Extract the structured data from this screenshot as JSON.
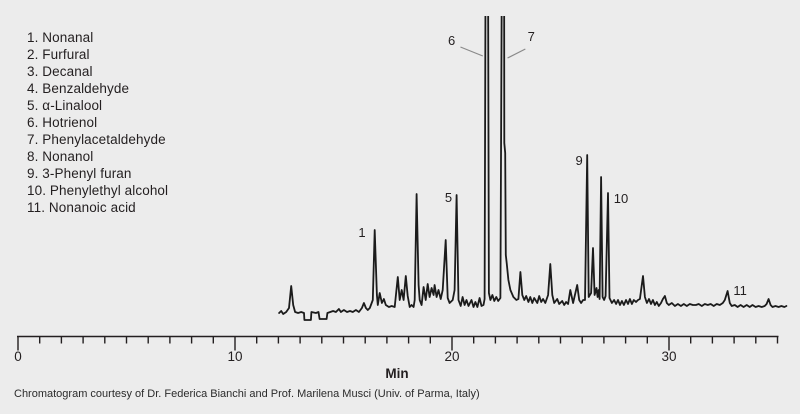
{
  "colors": {
    "background": "#ECECEC",
    "trace": "#1B1B1B",
    "text": "#231F20",
    "leader_line": "#8A8A8A"
  },
  "legend": {
    "items": [
      "1. Nonanal",
      "2. Furfural",
      "3. Decanal",
      "4. Benzaldehyde",
      "5. α-Linalool",
      "6. Hotrienol",
      "7. Phenylacetaldehyde",
      "8. Nonanol",
      "9. 3-Phenyl furan",
      "10. Phenylethyl alcohol",
      "11. Nonanoic acid"
    ]
  },
  "caption": {
    "text": "Chromatogram courtesy of Dr. Federica Bianchi and Prof. Marilena Musci (Univ. of Parma, Italy)"
  },
  "chart_data": {
    "type": "line",
    "title": "",
    "xlabel": "Min",
    "ylabel": "",
    "x_range": [
      0,
      35
    ],
    "minor_tick_step": 1,
    "major_ticks": [
      0,
      10,
      20,
      30
    ],
    "grid": false,
    "peaks": [
      {
        "label": "1",
        "compound": "Nonanal",
        "retention_min": 16.4,
        "off_scale": false
      },
      {
        "label": "5",
        "compound": "α-Linalool",
        "retention_min": 20.2,
        "off_scale": false
      },
      {
        "label": "6",
        "compound": "Hotrienol",
        "retention_min": 21.6,
        "off_scale": true
      },
      {
        "label": "7",
        "compound": "Phenylacetaldehyde",
        "retention_min": 22.3,
        "off_scale": true
      },
      {
        "label": "9",
        "compound": "3-Phenyl furan",
        "retention_min": 26.2,
        "off_scale": false
      },
      {
        "label": "10",
        "compound": "Phenylethyl alcohol",
        "retention_min": 27.2,
        "off_scale": false
      },
      {
        "label": "11",
        "compound": "Nonanoic acid",
        "retention_min": 32.7,
        "off_scale": false
      }
    ],
    "peak_labels": [
      {
        "text": "1",
        "t": 15.85,
        "v": 76
      },
      {
        "text": "5",
        "t": 19.84,
        "v": 111
      },
      {
        "text": "6",
        "t": 19.98,
        "v": 268
      },
      {
        "text": "7",
        "t": 23.65,
        "v": 272
      },
      {
        "text": "9",
        "t": 25.86,
        "v": 148
      },
      {
        "text": "10",
        "t": 27.79,
        "v": 110
      },
      {
        "text": "11",
        "t": 33.28,
        "v": 18
      }
    ],
    "leader_lines": [
      {
        "t1": 20.39,
        "v1": 266,
        "t2": 21.42,
        "v2": 257
      },
      {
        "t1": 23.38,
        "v1": 264,
        "t2": 22.56,
        "v2": 255
      }
    ],
    "trace_points": [
      [
        12.03,
        0
      ],
      [
        12.13,
        2
      ],
      [
        12.22,
        -1
      ],
      [
        12.36,
        1
      ],
      [
        12.49,
        5
      ],
      [
        12.59,
        27
      ],
      [
        12.68,
        8
      ],
      [
        12.77,
        1
      ],
      [
        12.91,
        0
      ],
      [
        13.05,
        1
      ],
      [
        13.18,
        0
      ],
      [
        13.2,
        -7
      ],
      [
        13.5,
        -7
      ],
      [
        13.52,
        1
      ],
      [
        13.73,
        0
      ],
      [
        13.85,
        1
      ],
      [
        13.9,
        -6
      ],
      [
        14.22,
        -6
      ],
      [
        14.26,
        0
      ],
      [
        14.52,
        2
      ],
      [
        14.65,
        1
      ],
      [
        14.79,
        4
      ],
      [
        14.88,
        1
      ],
      [
        15.02,
        3
      ],
      [
        15.16,
        1
      ],
      [
        15.3,
        2
      ],
      [
        15.43,
        1
      ],
      [
        15.57,
        3
      ],
      [
        15.71,
        1
      ],
      [
        15.85,
        5
      ],
      [
        15.94,
        10
      ],
      [
        16.03,
        5
      ],
      [
        16.12,
        3
      ],
      [
        16.21,
        5
      ],
      [
        16.35,
        13
      ],
      [
        16.44,
        83
      ],
      [
        16.54,
        18
      ],
      [
        16.58,
        8
      ],
      [
        16.67,
        20
      ],
      [
        16.77,
        10
      ],
      [
        16.86,
        14
      ],
      [
        16.95,
        8
      ],
      [
        17.09,
        6
      ],
      [
        17.22,
        7
      ],
      [
        17.36,
        6
      ],
      [
        17.5,
        36
      ],
      [
        17.59,
        13
      ],
      [
        17.68,
        23
      ],
      [
        17.77,
        13
      ],
      [
        17.87,
        37
      ],
      [
        17.96,
        17
      ],
      [
        18.05,
        6
      ],
      [
        18.14,
        8
      ],
      [
        18.23,
        6
      ],
      [
        18.28,
        13
      ],
      [
        18.37,
        119
      ],
      [
        18.46,
        28
      ],
      [
        18.51,
        13
      ],
      [
        18.6,
        8
      ],
      [
        18.69,
        26
      ],
      [
        18.79,
        13
      ],
      [
        18.88,
        29
      ],
      [
        18.97,
        16
      ],
      [
        19.06,
        25
      ],
      [
        19.15,
        18
      ],
      [
        19.2,
        28
      ],
      [
        19.29,
        16
      ],
      [
        19.38,
        23
      ],
      [
        19.48,
        14
      ],
      [
        19.57,
        23
      ],
      [
        19.71,
        73
      ],
      [
        19.8,
        15
      ],
      [
        19.89,
        10
      ],
      [
        20.03,
        13
      ],
      [
        20.12,
        23
      ],
      [
        20.21,
        118
      ],
      [
        20.3,
        13
      ],
      [
        20.4,
        7
      ],
      [
        20.49,
        16
      ],
      [
        20.58,
        8
      ],
      [
        20.67,
        13
      ],
      [
        20.76,
        7
      ],
      [
        20.9,
        13
      ],
      [
        20.99,
        6
      ],
      [
        21.08,
        11
      ],
      [
        21.17,
        6
      ],
      [
        21.27,
        15
      ],
      [
        21.36,
        7
      ],
      [
        21.45,
        8
      ],
      [
        21.5,
        14
      ],
      [
        21.55,
        360
      ],
      [
        21.66,
        360
      ],
      [
        21.7,
        20
      ],
      [
        21.77,
        13
      ],
      [
        21.86,
        18
      ],
      [
        21.95,
        12
      ],
      [
        22.04,
        16
      ],
      [
        22.13,
        12
      ],
      [
        22.23,
        15
      ],
      [
        22.3,
        360
      ],
      [
        22.4,
        360
      ],
      [
        22.41,
        170
      ],
      [
        22.45,
        160
      ],
      [
        22.48,
        58
      ],
      [
        22.52,
        50
      ],
      [
        22.6,
        33
      ],
      [
        22.69,
        23
      ],
      [
        22.83,
        16
      ],
      [
        22.97,
        13
      ],
      [
        23.06,
        14
      ],
      [
        23.15,
        41
      ],
      [
        23.24,
        18
      ],
      [
        23.33,
        13
      ],
      [
        23.42,
        17
      ],
      [
        23.52,
        11
      ],
      [
        23.61,
        16
      ],
      [
        23.7,
        10
      ],
      [
        23.79,
        15
      ],
      [
        23.93,
        10
      ],
      [
        24.02,
        17
      ],
      [
        24.11,
        11
      ],
      [
        24.2,
        14
      ],
      [
        24.3,
        10
      ],
      [
        24.43,
        18
      ],
      [
        24.53,
        49
      ],
      [
        24.62,
        18
      ],
      [
        24.71,
        10
      ],
      [
        24.85,
        14
      ],
      [
        24.94,
        9
      ],
      [
        25.08,
        12
      ],
      [
        25.17,
        8
      ],
      [
        25.26,
        11
      ],
      [
        25.35,
        9
      ],
      [
        25.45,
        23
      ],
      [
        25.58,
        10
      ],
      [
        25.77,
        28
      ],
      [
        25.86,
        13
      ],
      [
        25.95,
        10
      ],
      [
        26.04,
        13
      ],
      [
        26.13,
        13
      ],
      [
        26.23,
        158
      ],
      [
        26.3,
        16
      ],
      [
        26.41,
        20
      ],
      [
        26.5,
        65
      ],
      [
        26.57,
        18
      ],
      [
        26.66,
        25
      ],
      [
        26.71,
        16
      ],
      [
        26.76,
        23
      ],
      [
        26.8,
        14
      ],
      [
        26.87,
        136
      ],
      [
        26.94,
        16
      ],
      [
        27.01,
        13
      ],
      [
        27.08,
        17
      ],
      [
        27.19,
        120
      ],
      [
        27.26,
        15
      ],
      [
        27.37,
        10
      ],
      [
        27.47,
        13
      ],
      [
        27.56,
        9
      ],
      [
        27.65,
        13
      ],
      [
        27.74,
        8
      ],
      [
        27.83,
        12
      ],
      [
        27.92,
        8
      ],
      [
        28.02,
        13
      ],
      [
        28.11,
        9
      ],
      [
        28.2,
        14
      ],
      [
        28.29,
        9
      ],
      [
        28.38,
        13
      ],
      [
        28.48,
        11
      ],
      [
        28.57,
        13
      ],
      [
        28.66,
        14
      ],
      [
        28.8,
        37
      ],
      [
        28.89,
        16
      ],
      [
        28.98,
        10
      ],
      [
        29.08,
        14
      ],
      [
        29.17,
        9
      ],
      [
        29.26,
        13
      ],
      [
        29.35,
        8
      ],
      [
        29.44,
        11
      ],
      [
        29.53,
        7
      ],
      [
        29.63,
        10
      ],
      [
        29.72,
        14
      ],
      [
        29.81,
        17
      ],
      [
        29.9,
        10
      ],
      [
        29.99,
        8
      ],
      [
        30.13,
        10
      ],
      [
        30.27,
        7
      ],
      [
        30.41,
        9
      ],
      [
        30.55,
        7
      ],
      [
        30.68,
        9
      ],
      [
        30.82,
        7
      ],
      [
        30.96,
        9
      ],
      [
        31.1,
        8
      ],
      [
        31.24,
        8
      ],
      [
        31.37,
        9
      ],
      [
        31.51,
        7
      ],
      [
        31.65,
        9
      ],
      [
        31.79,
        8
      ],
      [
        31.92,
        9
      ],
      [
        32.06,
        7
      ],
      [
        32.2,
        9
      ],
      [
        32.34,
        8
      ],
      [
        32.48,
        10
      ],
      [
        32.57,
        13
      ],
      [
        32.7,
        22
      ],
      [
        32.8,
        10
      ],
      [
        32.89,
        7
      ],
      [
        33.03,
        8
      ],
      [
        33.16,
        6
      ],
      [
        33.3,
        8
      ],
      [
        33.44,
        6
      ],
      [
        33.58,
        8
      ],
      [
        33.72,
        6
      ],
      [
        33.85,
        8
      ],
      [
        33.99,
        6
      ],
      [
        34.13,
        7
      ],
      [
        34.27,
        6
      ],
      [
        34.41,
        7
      ],
      [
        34.5,
        9
      ],
      [
        34.59,
        14
      ],
      [
        34.68,
        8
      ],
      [
        34.77,
        6
      ],
      [
        34.91,
        7
      ],
      [
        35.05,
        6
      ],
      [
        35.18,
        7
      ],
      [
        35.32,
        6
      ],
      [
        35.41,
        7
      ]
    ]
  }
}
